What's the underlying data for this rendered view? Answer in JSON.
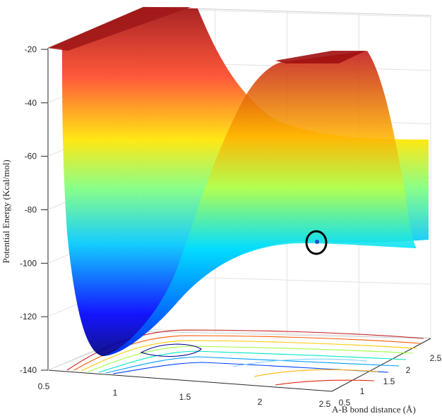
{
  "chart_data": {
    "type": "surface",
    "title": "",
    "zlabel": "Potential Energy (Kcal/mol)",
    "xlabel": "",
    "ylabel": "A-B bond distance (Å)",
    "z_ticks": [
      "-20",
      "-40",
      "-60",
      "-80",
      "-100",
      "-120",
      "-140"
    ],
    "x_ticks": [
      "0.5",
      "1",
      "1.5",
      "2",
      "2.5"
    ],
    "y_ticks": [
      "0.5",
      "1",
      "1.5",
      "2",
      "2.5"
    ],
    "zlim": [
      -140,
      -20
    ],
    "xlim": [
      0.5,
      2.5
    ],
    "ylim": [
      0.5,
      2.5
    ],
    "surface_profile": {
      "description_points": [
        {
          "x": 0.7,
          "energy": -20
        },
        {
          "x": 1.0,
          "energy": -136
        },
        {
          "x": 1.5,
          "energy": -110
        },
        {
          "x": 2.0,
          "energy": -92
        },
        {
          "x": 2.5,
          "energy": -93
        }
      ]
    },
    "colormap": "jet",
    "grid": true,
    "marker": {
      "shape": "circle",
      "color": "#000000"
    }
  }
}
